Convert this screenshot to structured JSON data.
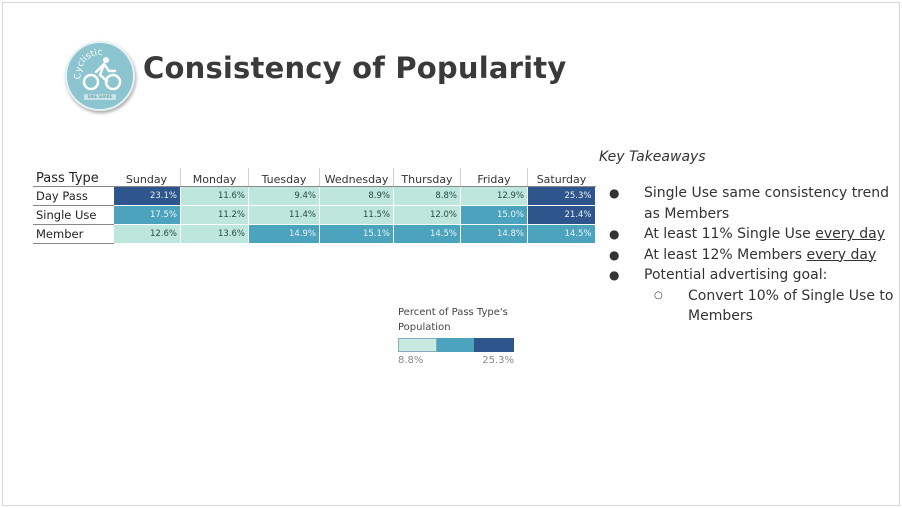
{
  "title": "Consistency of Popularity",
  "logo": {
    "text": "Cyclistic",
    "subtext": "BIKE SHARE",
    "icon": "bicycle-rider-icon"
  },
  "table": {
    "corner_label": "Pass Type",
    "columns": [
      "Sunday",
      "Monday",
      "Tuesday",
      "Wednesday",
      "Thursday",
      "Friday",
      "Saturday"
    ],
    "rows": [
      {
        "label": "Day Pass",
        "cells": [
          "23.1%",
          "11.6%",
          "9.4%",
          "8.9%",
          "8.8%",
          "12.9%",
          "25.3%"
        ],
        "shade": [
          "dark",
          "light",
          "light",
          "light",
          "light",
          "light",
          "dark"
        ]
      },
      {
        "label": "Single Use",
        "cells": [
          "17.5%",
          "11.2%",
          "11.4%",
          "11.5%",
          "12.0%",
          "15.0%",
          "21.4%"
        ],
        "shade": [
          "mid",
          "light",
          "light",
          "light",
          "light",
          "mid",
          "dark"
        ]
      },
      {
        "label": "Member",
        "cells": [
          "12.6%",
          "13.6%",
          "14.9%",
          "15.1%",
          "14.5%",
          "14.8%",
          "14.5%"
        ],
        "shade": [
          "light",
          "light",
          "mid",
          "mid",
          "mid",
          "mid",
          "mid"
        ]
      }
    ]
  },
  "legend": {
    "title": "Percent of Pass Type's Population",
    "min": "8.8%",
    "max": "25.3%",
    "colors": [
      "#c6eadf",
      "#4ba3bd",
      "#2e568c"
    ]
  },
  "takeaways": {
    "title": "Key Takeaways",
    "items": [
      {
        "pre": "Single Use same consistency trend as Members",
        "u": "",
        "post": ""
      },
      {
        "pre": "At least 11% Single Use ",
        "u": "every day",
        "post": ""
      },
      {
        "pre": "At least 12% Members ",
        "u": "every day",
        "post": ""
      },
      {
        "pre": "Potential advertising goal:",
        "u": "",
        "post": ""
      }
    ],
    "sub_items": [
      "Convert 10% of Single Use to Members"
    ]
  }
}
